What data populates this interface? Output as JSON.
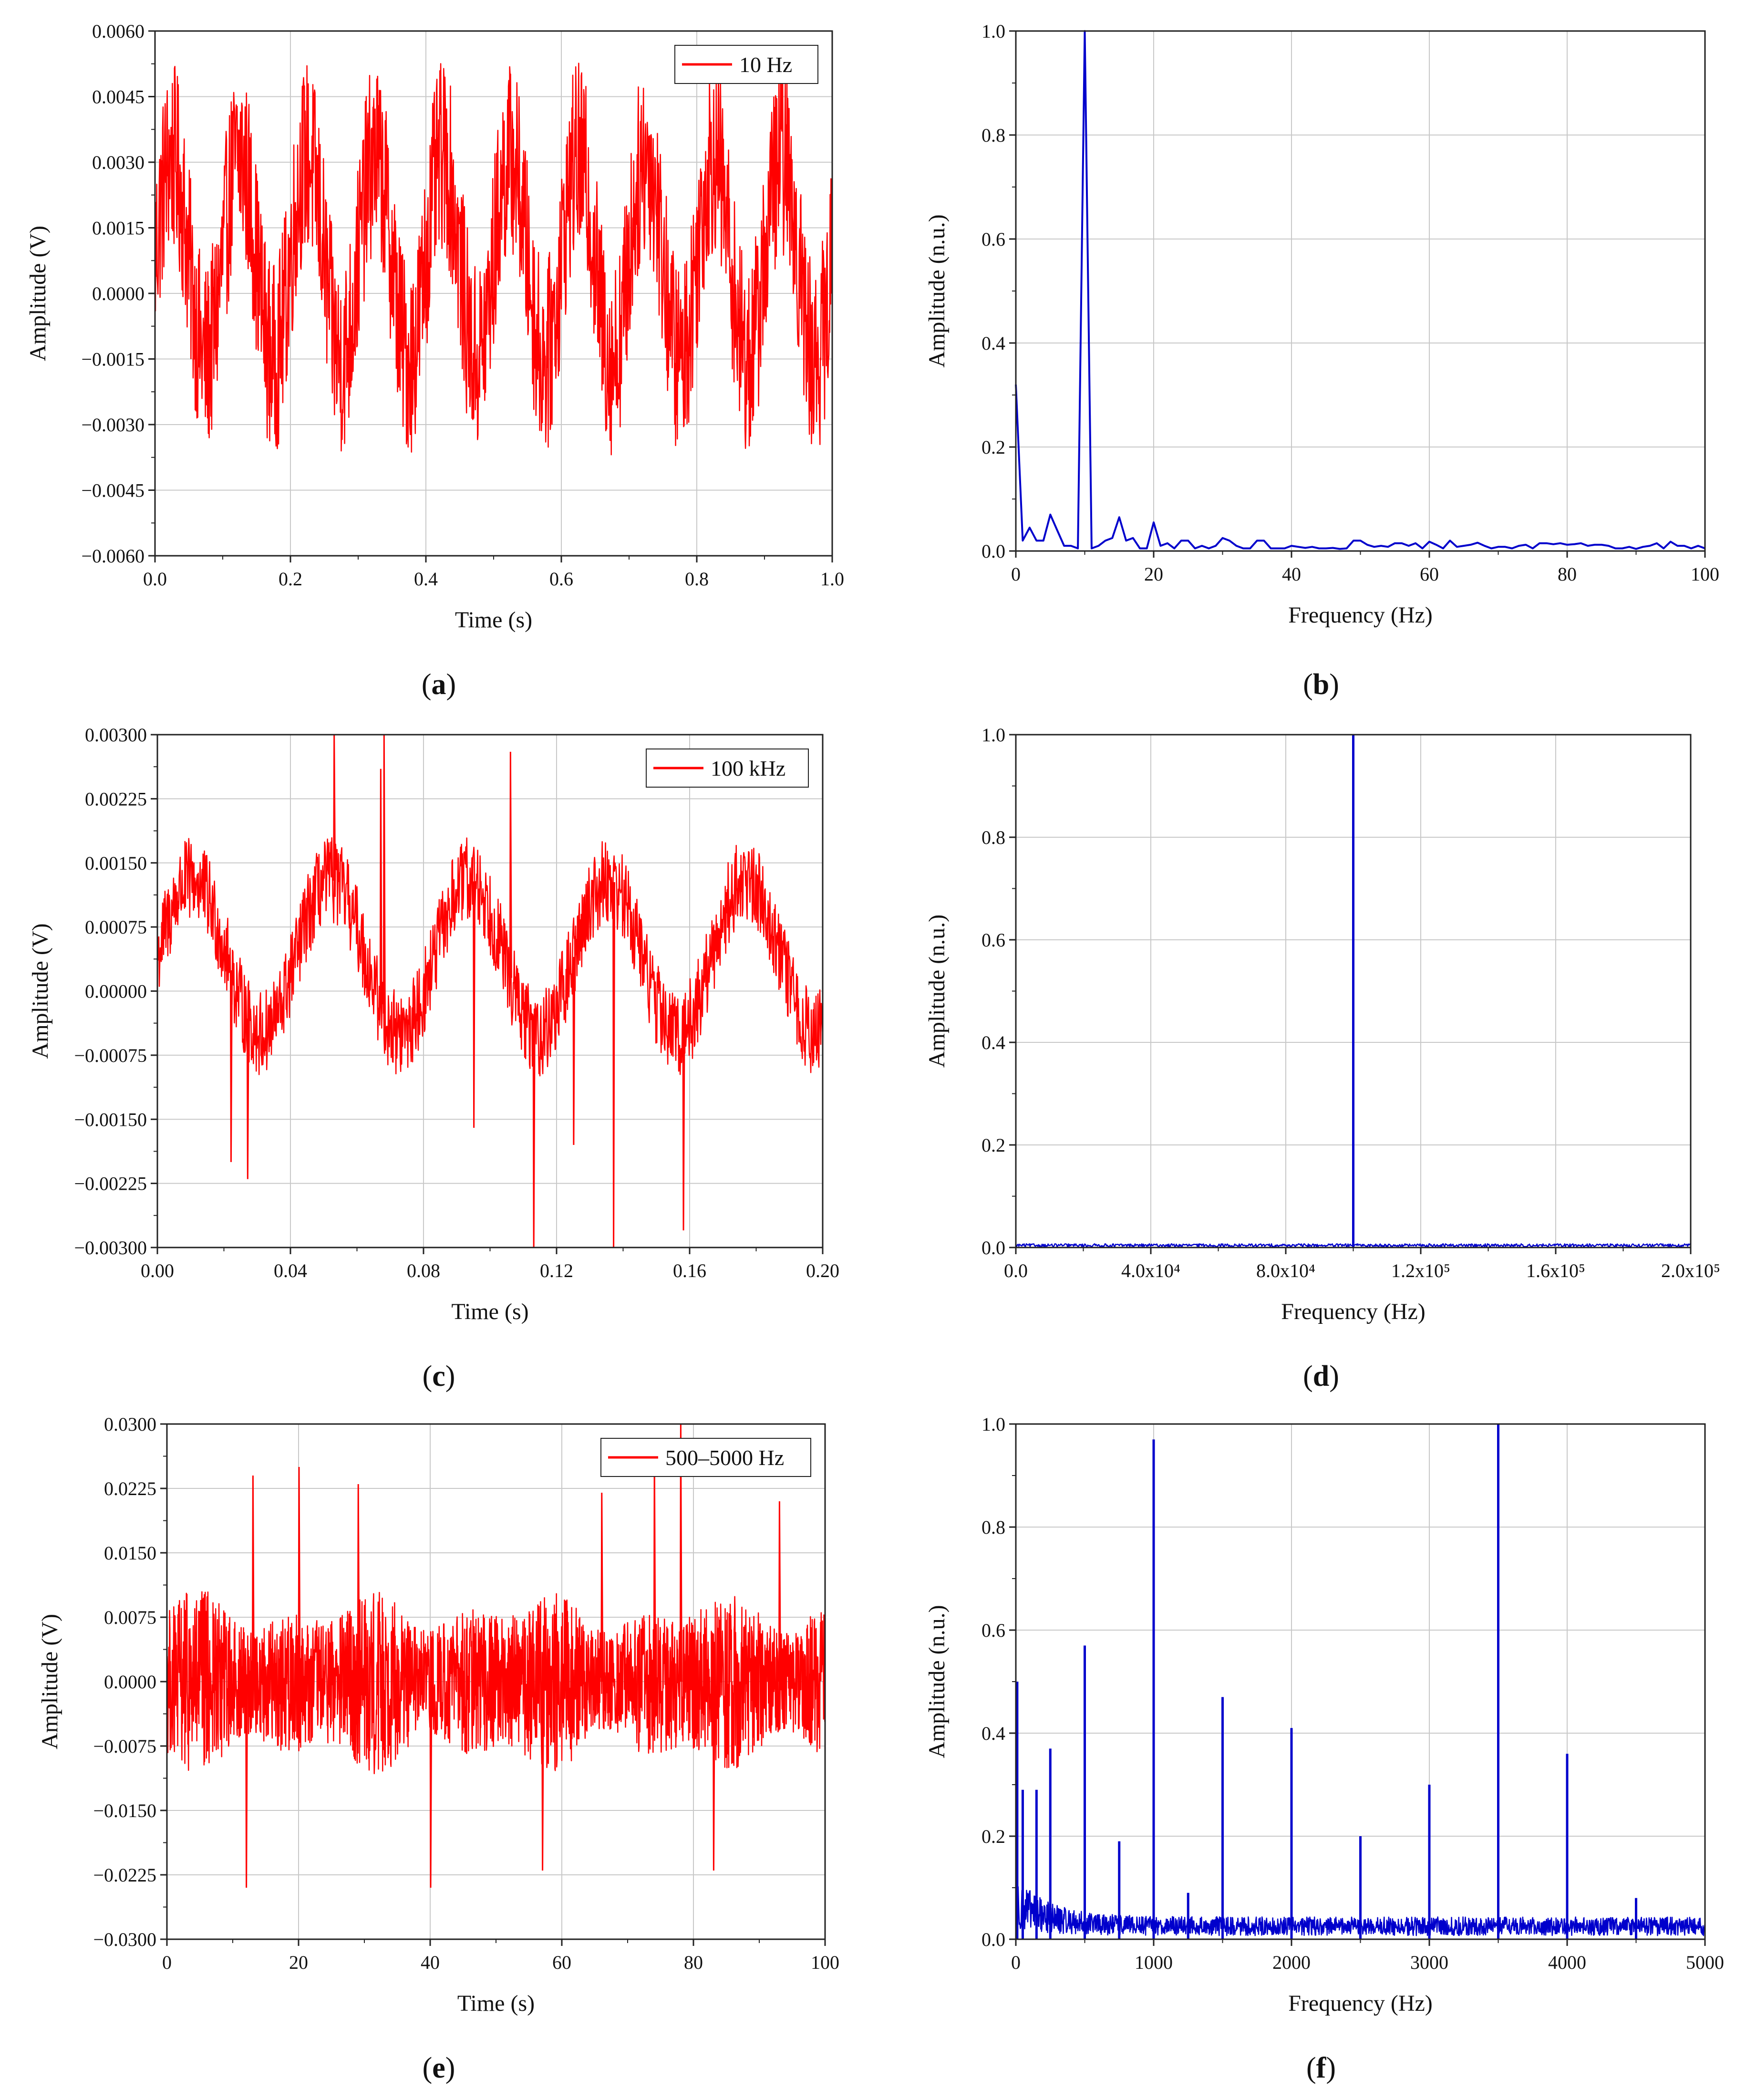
{
  "chart_data": [
    {
      "id": "a",
      "type": "line",
      "panel_label": "(a)",
      "panel_letter": "a",
      "xlabel": "Time (s)",
      "ylabel": "Amplitude (V)",
      "xlim": [
        0,
        1
      ],
      "ylim": [
        -0.006,
        0.006
      ],
      "xticks": [
        0,
        0.2,
        0.4,
        0.6,
        0.8,
        1.0
      ],
      "xtick_labels": [
        "0.0",
        "0.2",
        "0.4",
        "0.6",
        "0.8",
        "1.0"
      ],
      "yticks": [
        -0.006,
        -0.0045,
        -0.003,
        -0.0015,
        0,
        0.0015,
        0.003,
        0.0045,
        0.006
      ],
      "ytick_labels": [
        "−0.0060",
        "−0.0045",
        "−0.0030",
        "−0.0015",
        "0.0000",
        "0.0015",
        "0.0030",
        "0.0045",
        "0.0060"
      ],
      "grid": true,
      "legend": {
        "position": "top-right",
        "entries": [
          "10 Hz"
        ]
      },
      "color": "#ff0000",
      "series": [
        {
          "name": "10 Hz",
          "signal": "sinusoid",
          "frequency": 10,
          "sine_amplitude": 0.0023,
          "offset": 0.0008,
          "noise_amplitude": 0.0022,
          "samples": 1600
        }
      ]
    },
    {
      "id": "b",
      "type": "line",
      "panel_label": "(b)",
      "panel_letter": "b",
      "xlabel": "Frequency (Hz)",
      "ylabel": "Amplitude (n.u.)",
      "xlim": [
        0,
        100
      ],
      "ylim": [
        0,
        1
      ],
      "xticks": [
        0,
        20,
        40,
        60,
        80,
        100
      ],
      "xtick_labels": [
        "0",
        "20",
        "40",
        "60",
        "80",
        "100"
      ],
      "yticks": [
        0,
        0.2,
        0.4,
        0.6,
        0.8,
        1.0
      ],
      "ytick_labels": [
        "0.0",
        "0.2",
        "0.4",
        "0.6",
        "0.8",
        "1.0"
      ],
      "grid": true,
      "color": "#0000cc",
      "series": [
        {
          "x": [
            0,
            1,
            2,
            3,
            4,
            5,
            6,
            7,
            8,
            9,
            10,
            11,
            12,
            13,
            14,
            15,
            16,
            17,
            18,
            19,
            20,
            21,
            22,
            23,
            24,
            25,
            26,
            27,
            28,
            29,
            30,
            31,
            32,
            33,
            34,
            35,
            36,
            37,
            38,
            39,
            40,
            41,
            42,
            43,
            44,
            45,
            46,
            47,
            48,
            49,
            50,
            51,
            52,
            53,
            54,
            55,
            56,
            57,
            58,
            59,
            60,
            61,
            62,
            63,
            64,
            65,
            66,
            67,
            68,
            69,
            70,
            71,
            72,
            73,
            74,
            75,
            76,
            77,
            78,
            79,
            80,
            81,
            82,
            83,
            84,
            85,
            86,
            87,
            88,
            89,
            90,
            91,
            92,
            93,
            94,
            95,
            96,
            97,
            98,
            99,
            100
          ],
          "y": [
            0.32,
            0.02,
            0.045,
            0.02,
            0.02,
            0.07,
            0.04,
            0.01,
            0.01,
            0.005,
            1.0,
            0.005,
            0.01,
            0.02,
            0.025,
            0.065,
            0.02,
            0.025,
            0.005,
            0.005,
            0.055,
            0.01,
            0.015,
            0.005,
            0.02,
            0.02,
            0.005,
            0.01,
            0.005,
            0.01,
            0.025,
            0.02,
            0.01,
            0.005,
            0.005,
            0.02,
            0.02,
            0.005,
            0.005,
            0.005,
            0.01,
            0.008,
            0.006,
            0.008,
            0.005,
            0.005,
            0.006,
            0.004,
            0.005,
            0.02,
            0.02,
            0.012,
            0.008,
            0.01,
            0.008,
            0.015,
            0.015,
            0.01,
            0.015,
            0.005,
            0.018,
            0.012,
            0.005,
            0.02,
            0.008,
            0.01,
            0.012,
            0.016,
            0.01,
            0.005,
            0.008,
            0.008,
            0.005,
            0.01,
            0.012,
            0.005,
            0.015,
            0.015,
            0.013,
            0.015,
            0.012,
            0.013,
            0.015,
            0.01,
            0.012,
            0.012,
            0.01,
            0.005,
            0.005,
            0.008,
            0.004,
            0.008,
            0.01,
            0.015,
            0.005,
            0.018,
            0.01,
            0.01,
            0.005,
            0.01,
            0.005
          ]
        }
      ]
    },
    {
      "id": "c",
      "type": "line",
      "panel_label": "(c)",
      "panel_letter": "c",
      "xlabel": "Time (s)",
      "ylabel": "Amplitude (V)",
      "xlim": [
        0,
        0.2
      ],
      "ylim": [
        -0.003,
        0.003
      ],
      "xticks": [
        0,
        0.04,
        0.08,
        0.12,
        0.16,
        0.2
      ],
      "xtick_labels": [
        "0.00",
        "0.04",
        "0.08",
        "0.12",
        "0.16",
        "0.20"
      ],
      "yticks": [
        -0.003,
        -0.00225,
        -0.0015,
        -0.00075,
        0,
        0.00075,
        0.0015,
        0.00225,
        0.003
      ],
      "ytick_labels": [
        "−0.00300",
        "−0.00225",
        "−0.00150",
        "−0.00075",
        "0.00000",
        "0.00075",
        "0.00150",
        "0.00225",
        "0.00300"
      ],
      "grid": true,
      "legend": {
        "position": "top-right",
        "entries": [
          "100 kHz"
        ]
      },
      "color": "#ff0000",
      "series": [
        {
          "name": "100 kHz",
          "signal": "sinusoid",
          "frequency": 24,
          "sine_amplitude": 0.0009,
          "offset": 0.0004,
          "noise_amplitude": 0.0005,
          "samples": 1400,
          "spikes": [
            [
              0.053,
              0.003
            ],
            [
              0.068,
              0.003
            ],
            [
              0.113,
              -0.003
            ],
            [
              0.137,
              -0.003
            ],
            [
              0.158,
              -0.0028
            ],
            [
              0.022,
              -0.002
            ],
            [
              0.027,
              -0.0022
            ],
            [
              0.067,
              0.0026
            ],
            [
              0.095,
              -0.0016
            ],
            [
              0.106,
              0.0028
            ],
            [
              0.125,
              -0.0018
            ]
          ]
        }
      ]
    },
    {
      "id": "d",
      "type": "line",
      "panel_label": "(d)",
      "panel_letter": "d",
      "xlabel": "Frequency (Hz)",
      "ylabel": "Amplitude (n.u.)",
      "xlim": [
        0,
        200000
      ],
      "ylim": [
        0,
        1
      ],
      "xticks": [
        0,
        40000,
        80000,
        120000,
        160000,
        200000
      ],
      "xtick_labels": [
        "0.0",
        "4.0x10⁴",
        "8.0x10⁴",
        "1.2x10⁵",
        "1.6x10⁵",
        "2.0x10⁵"
      ],
      "yticks": [
        0,
        0.2,
        0.4,
        0.6,
        0.8,
        1.0
      ],
      "ytick_labels": [
        "0.0",
        "0.2",
        "0.4",
        "0.6",
        "0.8",
        "1.0"
      ],
      "grid": true,
      "color": "#0000cc",
      "series": [
        {
          "peaks": [
            [
              100000,
              1.0
            ]
          ],
          "noise_floor": 0.006,
          "samples": 900
        }
      ]
    },
    {
      "id": "e",
      "type": "line",
      "panel_label": "(e)",
      "panel_letter": "e",
      "xlabel": "Time (s)",
      "ylabel": "Amplitude (V)",
      "xlim": [
        0,
        100
      ],
      "ylim": [
        -0.03,
        0.03
      ],
      "xticks": [
        0,
        20,
        40,
        60,
        80,
        100
      ],
      "xtick_labels": [
        "0",
        "20",
        "40",
        "60",
        "80",
        "100"
      ],
      "yticks": [
        -0.03,
        -0.0225,
        -0.015,
        -0.0075,
        0,
        0.0075,
        0.015,
        0.0225,
        0.03
      ],
      "ytick_labels": [
        "−0.0300",
        "−0.0225",
        "−0.0150",
        "−0.0075",
        "0.0000",
        "0.0075",
        "0.0150",
        "0.0225",
        "0.0300"
      ],
      "grid": true,
      "legend": {
        "position": "top-right",
        "entries": [
          "500–5000 Hz"
        ]
      },
      "color": "#ff0000",
      "series": [
        {
          "name": "500–5000 Hz",
          "signal": "noise",
          "noise_amplitude": 0.011,
          "samples": 2200,
          "spikes": [
            [
              13,
              0.024
            ],
            [
              20,
              0.025
            ],
            [
              29,
              0.023
            ],
            [
              40,
              -0.024
            ],
            [
              66,
              0.022
            ],
            [
              74,
              0.026
            ],
            [
              78,
              0.03
            ],
            [
              83,
              -0.022
            ],
            [
              12,
              -0.024
            ],
            [
              57,
              -0.022
            ],
            [
              93,
              0.021
            ]
          ]
        }
      ]
    },
    {
      "id": "f",
      "type": "line",
      "panel_label": "(f)",
      "panel_letter": "f",
      "xlabel": "Frequency (Hz)",
      "ylabel": "Amplitude (n.u.)",
      "xlim": [
        0,
        5000
      ],
      "ylim": [
        0,
        1
      ],
      "xticks": [
        0,
        1000,
        2000,
        3000,
        4000,
        5000
      ],
      "xtick_labels": [
        "0",
        "1000",
        "2000",
        "3000",
        "4000",
        "5000"
      ],
      "yticks": [
        0,
        0.2,
        0.4,
        0.6,
        0.8,
        1.0
      ],
      "ytick_labels": [
        "0.0",
        "0.2",
        "0.4",
        "0.6",
        "0.8",
        "1.0"
      ],
      "grid": true,
      "color": "#0000cc",
      "series": [
        {
          "peaks": [
            [
              10,
              0.5
            ],
            [
              50,
              0.29
            ],
            [
              150,
              0.29
            ],
            [
              250,
              0.37
            ],
            [
              500,
              0.57
            ],
            [
              750,
              0.19
            ],
            [
              1000,
              0.97
            ],
            [
              1250,
              0.09
            ],
            [
              1500,
              0.47
            ],
            [
              2000,
              0.41
            ],
            [
              2500,
              0.2
            ],
            [
              3000,
              0.3
            ],
            [
              3500,
              1.0
            ],
            [
              4000,
              0.36
            ],
            [
              4500,
              0.08
            ]
          ],
          "noise_floor": 0.04,
          "samples": 1800
        }
      ]
    }
  ]
}
